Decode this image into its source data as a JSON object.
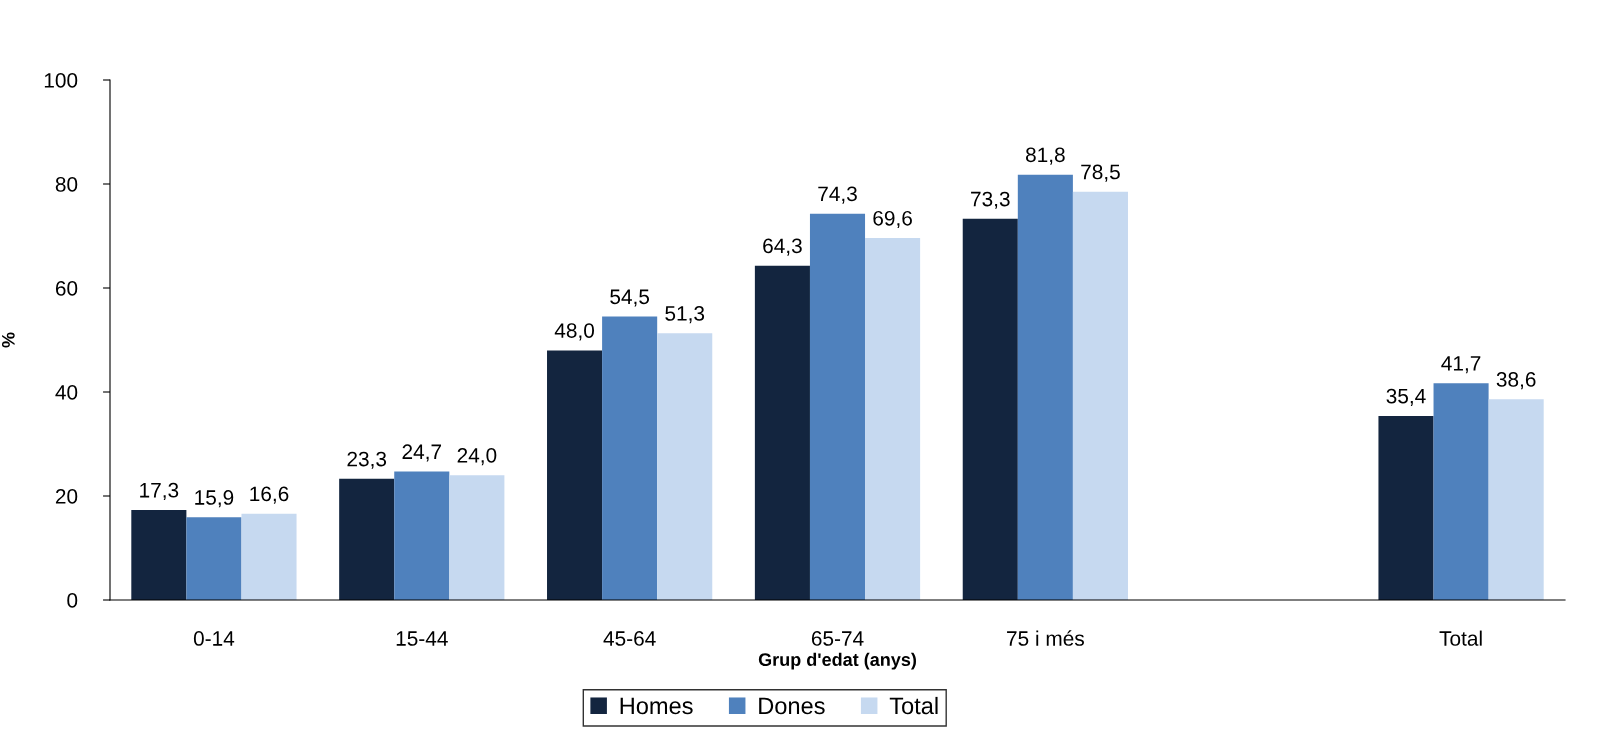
{
  "chart_data": {
    "type": "bar",
    "xlabel": "Grup d'edat (anys)",
    "ylabel": "%",
    "categories": [
      "0-14",
      "15-44",
      "45-64",
      "65-74",
      "75 i més",
      null,
      "Total"
    ],
    "series": [
      {
        "name": "Homes",
        "color": "#13253f",
        "values": [
          17.3,
          23.3,
          48.0,
          64.3,
          73.3,
          null,
          35.4
        ],
        "value_labels": [
          "17,3",
          "23,3",
          "48,0",
          "64,3",
          "73,3",
          null,
          "35,4"
        ]
      },
      {
        "name": "Dones",
        "color": "#4f81bd",
        "values": [
          15.9,
          24.7,
          54.5,
          74.3,
          81.8,
          null,
          41.7
        ],
        "value_labels": [
          "15,9",
          "24,7",
          "54,5",
          "74,3",
          "81,8",
          null,
          "41,7"
        ]
      },
      {
        "name": "Total",
        "color": "#c6d9f0",
        "values": [
          16.6,
          24.0,
          51.3,
          69.6,
          78.5,
          null,
          38.6
        ],
        "value_labels": [
          "16,6",
          "24,0",
          "51,3",
          "69,6",
          "78,5",
          null,
          "38,6"
        ]
      }
    ],
    "ylim": [
      0,
      100
    ],
    "yticks": [
      0,
      20,
      40,
      60,
      80,
      100
    ],
    "grid": false,
    "legend": "bottom"
  }
}
